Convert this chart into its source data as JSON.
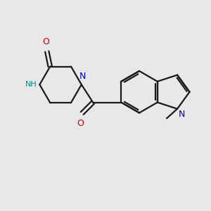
{
  "background_color": "#e8e8e8",
  "bond_color": "#1a1a1a",
  "N_color": "#0000cc",
  "NH_color": "#008888",
  "O_color": "#cc0000",
  "lw": 1.6,
  "figsize": [
    3.0,
    3.0
  ],
  "dpi": 100,
  "xlim": [
    0,
    10
  ],
  "ylim": [
    0,
    10
  ]
}
